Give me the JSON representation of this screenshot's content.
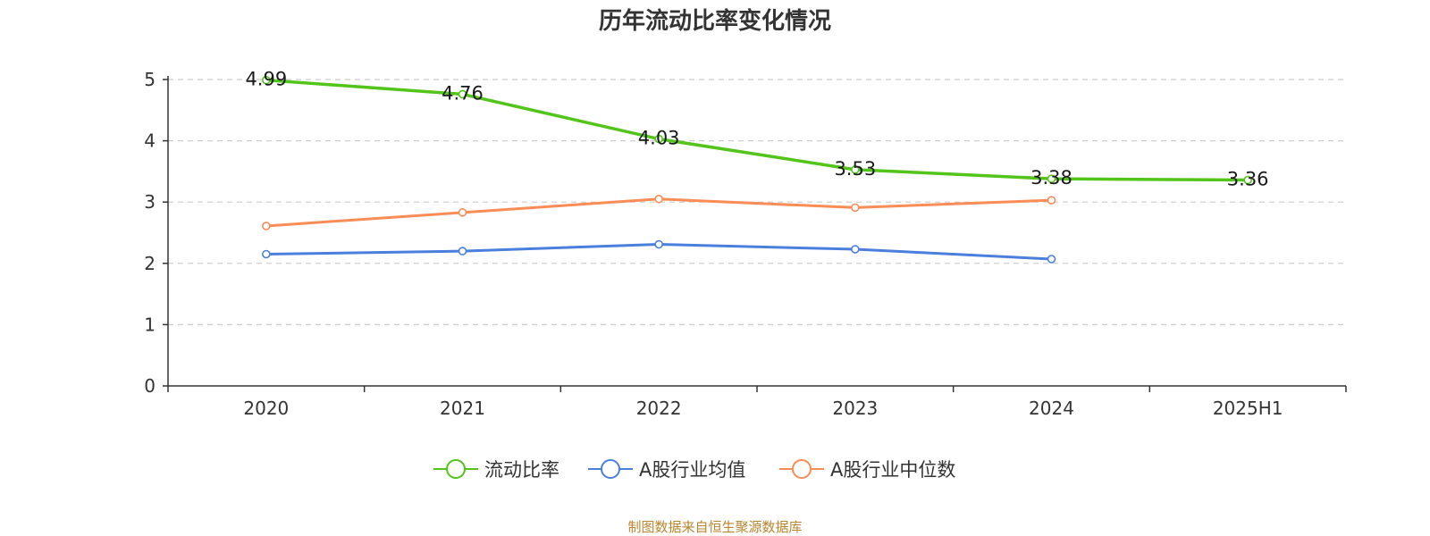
{
  "chart_data": {
    "type": "line",
    "title": "历年流动比率变化情况",
    "categories": [
      "2020",
      "2021",
      "2022",
      "2023",
      "2024",
      "2025H1"
    ],
    "ylim": [
      0,
      5
    ],
    "yticks": [
      "0",
      "1",
      "2",
      "3",
      "4",
      "5"
    ],
    "xlabel": "",
    "ylabel": "",
    "grid": true,
    "legend_position": "bottom",
    "series": [
      {
        "name": "流动比率",
        "color": "#52c41a",
        "values": [
          4.99,
          4.76,
          4.03,
          3.53,
          3.38,
          3.36
        ],
        "labels": [
          "4.99",
          "4.76",
          "4.03",
          "3.53",
          "3.38",
          "3.36"
        ],
        "show_labels": true
      },
      {
        "name": "A股行业均值",
        "color": "#4a7fde",
        "values": [
          2.15,
          2.2,
          2.31,
          2.23,
          2.07,
          null
        ],
        "show_labels": false
      },
      {
        "name": "A股行业中位数",
        "color": "#fa8c56",
        "values": [
          2.61,
          2.83,
          3.05,
          2.91,
          3.03,
          null
        ],
        "show_labels": false
      }
    ],
    "source_note": "制图数据来自恒生聚源数据库"
  }
}
